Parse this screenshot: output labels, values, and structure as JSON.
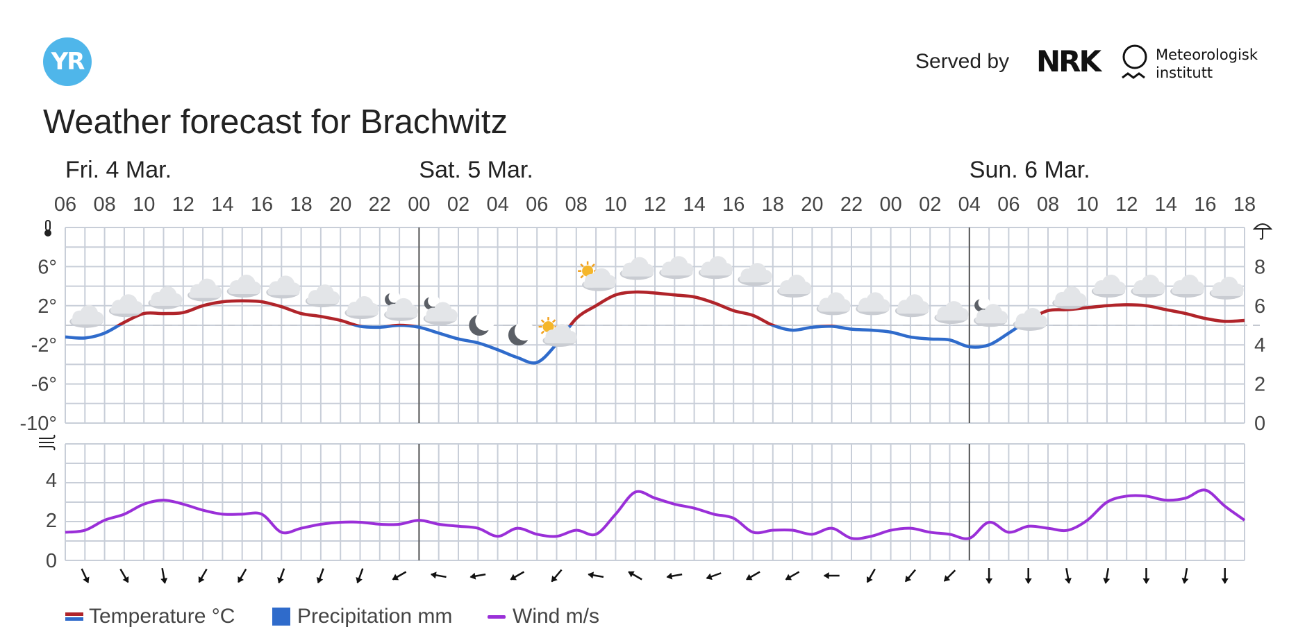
{
  "header": {
    "logo_text": "YR",
    "served_by": "Served by",
    "nrk": "NRK",
    "met_line1": "Meteorologisk",
    "met_line2": "institutt",
    "title": "Weather forecast for Brachwitz"
  },
  "colors": {
    "temp_warm": "#b0242a",
    "temp_cold": "#2f6bcb",
    "precip": "#2f6bcb",
    "wind": "#9a2fd8",
    "grid": "#c8ced8",
    "day_divider": "#555555"
  },
  "legend": {
    "temperature": "Temperature °C",
    "precipitation": "Precipitation mm",
    "wind": "Wind m/s"
  },
  "chart_data": [
    {
      "type": "line",
      "title": "",
      "days": [
        "Fri. 4 Mar.",
        "Sat. 5 Mar.",
        "Sun. 6 Mar."
      ],
      "x_unit": "hour",
      "x_start": "Fri 06:00",
      "x_ticks": [
        "06",
        "08",
        "10",
        "12",
        "14",
        "16",
        "18",
        "20",
        "22",
        "00",
        "02",
        "04",
        "06",
        "08",
        "10",
        "12",
        "14",
        "16",
        "18",
        "20",
        "22",
        "00",
        "02",
        "04",
        "06",
        "08",
        "10",
        "12",
        "14",
        "16",
        "18"
      ],
      "ylabel_left": "°C",
      "y_ticks_left": [
        "6°",
        "2°",
        "-2°",
        "-6°",
        "-10°"
      ],
      "ylim_left": [
        -10,
        10
      ],
      "ylabel_right": "mm",
      "y_ticks_right": [
        "8",
        "6",
        "4",
        "2",
        "0"
      ],
      "ylim_right": [
        0,
        10
      ],
      "icon_left": "thermometer-icon",
      "icon_right": "umbrella-icon",
      "grid": true,
      "series": [
        {
          "name": "Temperature °C",
          "unit": "°C",
          "x": [
            0,
            1,
            2,
            3,
            4,
            5,
            6,
            7,
            8,
            9,
            10,
            11,
            12,
            13,
            14,
            15,
            16,
            17,
            18,
            19,
            20,
            21,
            22,
            23,
            24,
            25,
            26,
            27,
            28,
            29,
            30,
            31,
            32,
            33,
            34,
            35,
            36,
            37,
            38,
            39,
            40,
            41,
            42,
            43,
            44,
            45,
            46,
            47,
            48,
            49,
            50,
            51,
            52,
            53,
            54,
            55,
            56,
            57,
            58,
            59,
            60
          ],
          "values": [
            -1.2,
            -1.3,
            -0.8,
            0.3,
            1.2,
            1.2,
            1.3,
            2.0,
            2.4,
            2.5,
            2.4,
            1.9,
            1.2,
            0.9,
            0.5,
            -0.1,
            -0.2,
            0.0,
            -0.2,
            -0.8,
            -1.4,
            -1.8,
            -2.5,
            -3.3,
            -3.8,
            -1.9,
            0.7,
            2.0,
            3.1,
            3.4,
            3.3,
            3.1,
            2.9,
            2.3,
            1.5,
            1.0,
            0.0,
            -0.5,
            -0.2,
            -0.1,
            -0.4,
            -0.5,
            -0.7,
            -1.2,
            -1.4,
            -1.5,
            -2.2,
            -2.0,
            -0.8,
            0.5,
            1.5,
            1.6,
            1.8,
            2.0,
            2.1,
            2.0,
            1.6,
            1.2,
            0.7,
            0.4,
            0.5
          ]
        },
        {
          "name": "Precipitation mm",
          "unit": "mm",
          "values": []
        }
      ],
      "weather_icons": [
        {
          "hour": 1,
          "icon": "cloudy-icon",
          "temp": 0.8
        },
        {
          "hour": 3,
          "icon": "cloudy-icon",
          "temp": 1.9
        },
        {
          "hour": 5,
          "icon": "cloudy-icon",
          "temp": 2.7
        },
        {
          "hour": 7,
          "icon": "cloudy-icon",
          "temp": 3.5
        },
        {
          "hour": 9,
          "icon": "cloudy-icon",
          "temp": 3.9
        },
        {
          "hour": 11,
          "icon": "cloudy-icon",
          "temp": 3.8
        },
        {
          "hour": 13,
          "icon": "cloudy-icon",
          "temp": 2.9
        },
        {
          "hour": 15,
          "icon": "cloudy-icon",
          "temp": 1.7
        },
        {
          "hour": 17,
          "icon": "partly-cloudy-night-icon",
          "temp": 1.5
        },
        {
          "hour": 19,
          "icon": "partly-cloudy-night-icon",
          "temp": 1.1
        },
        {
          "hour": 21,
          "icon": "moon-icon",
          "temp": 0.0
        },
        {
          "hour": 23,
          "icon": "moon-icon",
          "temp": -1.0
        },
        {
          "hour": 25,
          "icon": "partly-sunny-icon",
          "temp": -1.0
        },
        {
          "hour": 27,
          "icon": "partly-sunny-icon",
          "temp": 4.7
        },
        {
          "hour": 29,
          "icon": "cloudy-icon",
          "temp": 5.7
        },
        {
          "hour": 31,
          "icon": "cloudy-icon",
          "temp": 5.8
        },
        {
          "hour": 33,
          "icon": "cloudy-icon",
          "temp": 5.8
        },
        {
          "hour": 35,
          "icon": "cloudy-icon",
          "temp": 5.1
        },
        {
          "hour": 37,
          "icon": "cloudy-icon",
          "temp": 3.9
        },
        {
          "hour": 39,
          "icon": "cloudy-icon",
          "temp": 2.1
        },
        {
          "hour": 41,
          "icon": "cloudy-icon",
          "temp": 2.1
        },
        {
          "hour": 43,
          "icon": "cloudy-icon",
          "temp": 1.9
        },
        {
          "hour": 45,
          "icon": "cloudy-icon",
          "temp": 1.2
        },
        {
          "hour": 47,
          "icon": "partly-cloudy-night-icon",
          "temp": 0.9
        },
        {
          "hour": 49,
          "icon": "cloudy-icon",
          "temp": 0.5
        },
        {
          "hour": 51,
          "icon": "cloudy-icon",
          "temp": 2.7
        },
        {
          "hour": 53,
          "icon": "cloudy-icon",
          "temp": 3.9
        },
        {
          "hour": 55,
          "icon": "cloudy-icon",
          "temp": 3.9
        },
        {
          "hour": 57,
          "icon": "cloudy-icon",
          "temp": 3.9
        },
        {
          "hour": 59,
          "icon": "cloudy-icon",
          "temp": 3.7
        }
      ]
    },
    {
      "type": "line",
      "title": "",
      "ylabel": "m/s",
      "y_ticks": [
        "4",
        "2",
        "0"
      ],
      "ylim": [
        0,
        5.8
      ],
      "icon": "wind-icon",
      "grid": true,
      "series": [
        {
          "name": "Wind m/s",
          "unit": "m/s",
          "values": [
            1.4,
            1.5,
            2.0,
            2.3,
            2.8,
            3.0,
            2.8,
            2.5,
            2.3,
            2.3,
            2.3,
            1.4,
            1.6,
            1.8,
            1.9,
            1.9,
            1.8,
            1.8,
            2.0,
            1.8,
            1.7,
            1.6,
            1.2,
            1.6,
            1.3,
            1.2,
            1.5,
            1.3,
            2.3,
            3.4,
            3.1,
            2.8,
            2.6,
            2.3,
            2.1,
            1.4,
            1.5,
            1.5,
            1.3,
            1.6,
            1.1,
            1.2,
            1.5,
            1.6,
            1.4,
            1.3,
            1.1,
            1.9,
            1.4,
            1.7,
            1.6,
            1.5,
            2.0,
            2.9,
            3.2,
            3.2,
            3.0,
            3.1,
            3.5,
            2.7,
            2.0
          ]
        }
      ],
      "wind_directions_deg": [
        335,
        330,
        350,
        30,
        30,
        20,
        20,
        20,
        60,
        100,
        80,
        60,
        40,
        100,
        120,
        80,
        70,
        60,
        60,
        90,
        30,
        40,
        45,
        0,
        0,
        350,
        10,
        0,
        10,
        0
      ]
    }
  ]
}
